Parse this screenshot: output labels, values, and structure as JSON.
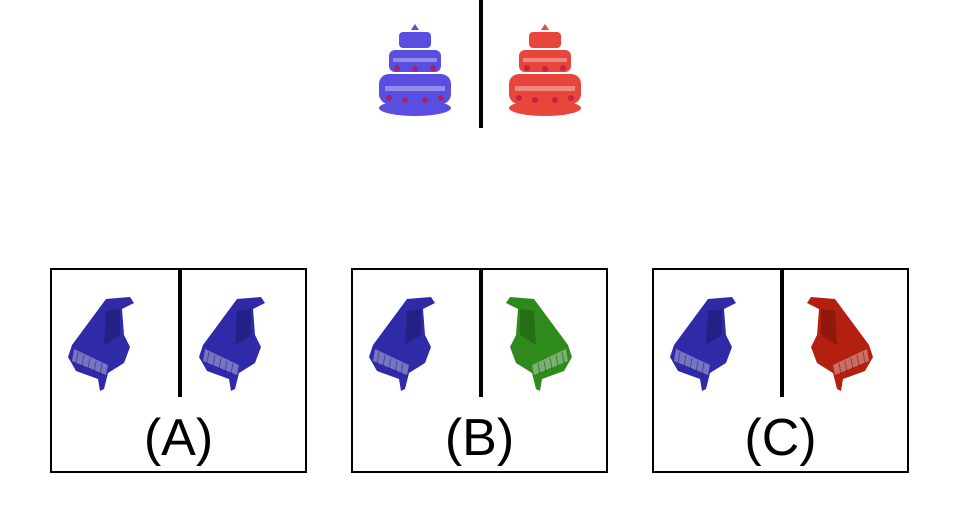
{
  "example": {
    "left_icon": "cake-icon",
    "left_color": "#5a4ee0",
    "right_icon": "cake-icon",
    "right_color": "#e8453c"
  },
  "options": [
    {
      "label": "(A)",
      "left_icon": "piano-icon",
      "left_color": "#2e2aa8",
      "right_icon": "piano-icon",
      "right_color": "#2e2aa8"
    },
    {
      "label": "(B)",
      "left_icon": "piano-icon",
      "left_color": "#2e2aa8",
      "right_icon": "piano-icon",
      "right_color": "#2f8a1c"
    },
    {
      "label": "(C)",
      "left_icon": "piano-icon",
      "left_color": "#2e2aa8",
      "right_icon": "piano-icon",
      "right_color": "#b3200f"
    }
  ]
}
